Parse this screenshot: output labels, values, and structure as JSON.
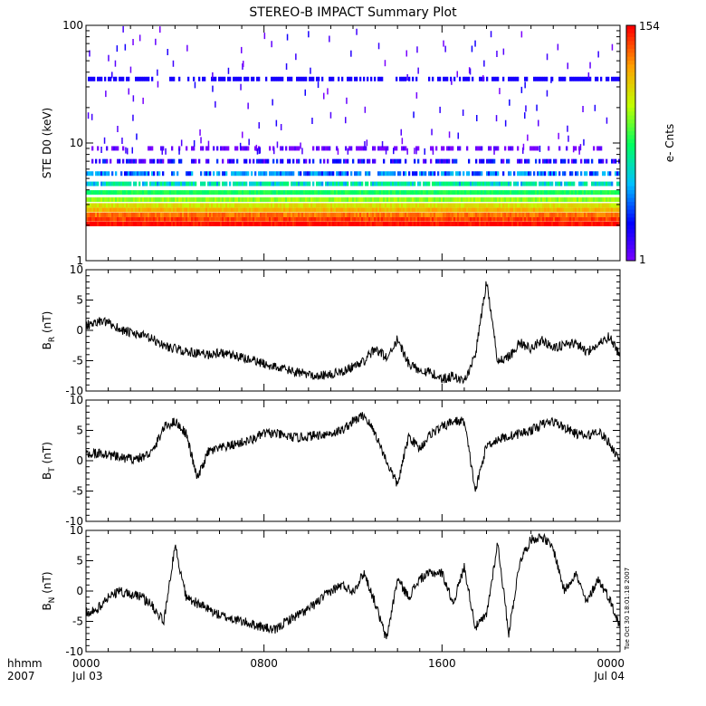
{
  "chart_data": [
    {
      "type": "heatmap",
      "title": "STEREO-B IMPACT Summary Plot",
      "ylabel": "STE D0 (keV)",
      "yscale": "log",
      "ylim": [
        1,
        100
      ],
      "yticks": [
        "1",
        "10",
        "100"
      ],
      "xlim": [
        0,
        1440
      ],
      "colorbar": {
        "label": "e- Cnts",
        "min": "1",
        "max": "154",
        "colors": [
          "#7f00ff",
          "#0000ff",
          "#00c0ff",
          "#00ff60",
          "#c0ff00",
          "#ffa000",
          "#ff0000"
        ]
      },
      "data": [
        {
          "energy_keV": 2.05,
          "counts": 154
        },
        {
          "energy_keV": 2.25,
          "counts": 120
        },
        {
          "energy_keV": 2.45,
          "counts": 90
        },
        {
          "energy_keV": 2.7,
          "counts": 60
        },
        {
          "energy_keV": 2.95,
          "counts": 40
        },
        {
          "energy_keV": 3.3,
          "counts": 25
        },
        {
          "energy_keV": 3.8,
          "counts": 14
        },
        {
          "energy_keV": 4.5,
          "counts": 8
        },
        {
          "energy_keV": 5.5,
          "counts": 4
        },
        {
          "energy_keV": 7.0,
          "counts": 2
        },
        {
          "energy_keV": 9.0,
          "counts": 1
        },
        {
          "energy_keV": 35,
          "counts": 2
        }
      ]
    },
    {
      "type": "line",
      "ylabel": "B",
      "ylabel_sub": "R",
      "ylabel_unit": "(nT)",
      "ylim": [
        -10,
        10
      ],
      "yticks": [
        "-10",
        "-5",
        "0",
        "5",
        "10"
      ],
      "xlim": [
        0,
        1440
      ],
      "series": [
        {
          "x": [
            0,
            30,
            60,
            90,
            120,
            150,
            180,
            210,
            240,
            270,
            300,
            330,
            360,
            390,
            420,
            450,
            480,
            510,
            540,
            570,
            600,
            630,
            660,
            690,
            720,
            750,
            780,
            810,
            840,
            870,
            900,
            930,
            960,
            990,
            1020,
            1050,
            1080,
            1110,
            1140,
            1170,
            1200,
            1230,
            1260,
            1290,
            1320,
            1350,
            1380,
            1410,
            1440
          ],
          "y": [
            0.8,
            1.5,
            1.2,
            0.3,
            -0.5,
            -0.8,
            -1.5,
            -2.5,
            -3,
            -3.5,
            -3.8,
            -4,
            -3.7,
            -4.2,
            -4.5,
            -5,
            -5.5,
            -6,
            -6.5,
            -7,
            -7.2,
            -7.5,
            -7.3,
            -6.8,
            -6,
            -5,
            -3,
            -4.5,
            -1.5,
            -5.5,
            -6.5,
            -7,
            -8,
            -7.5,
            -8.5,
            -4,
            8,
            -5,
            -4.5,
            -2,
            -3,
            -1.5,
            -3,
            -2.5,
            -2,
            -3.5,
            -2.5,
            -1,
            -4
          ]
        }
      ]
    },
    {
      "type": "line",
      "ylabel": "B",
      "ylabel_sub": "T",
      "ylabel_unit": "(nT)",
      "ylim": [
        -10,
        10
      ],
      "yticks": [
        "-10",
        "-5",
        "0",
        "5",
        "10"
      ],
      "xlim": [
        0,
        1440
      ],
      "series": [
        {
          "x": [
            0,
            30,
            60,
            90,
            120,
            150,
            180,
            210,
            240,
            270,
            300,
            330,
            360,
            390,
            420,
            450,
            480,
            510,
            540,
            570,
            600,
            630,
            660,
            690,
            720,
            750,
            780,
            810,
            840,
            870,
            900,
            930,
            960,
            990,
            1020,
            1050,
            1080,
            1110,
            1140,
            1170,
            1200,
            1230,
            1260,
            1290,
            1320,
            1350,
            1380,
            1410,
            1440
          ],
          "y": [
            1,
            1.2,
            1,
            0.5,
            0.3,
            0.5,
            1.5,
            5.5,
            6.5,
            4.5,
            -3,
            1.5,
            2,
            2.5,
            3,
            3.5,
            4.5,
            4.5,
            4,
            3.8,
            4,
            4.3,
            4.5,
            5,
            6.5,
            7.5,
            4.5,
            0,
            -4,
            4,
            2,
            4.5,
            5.5,
            6.5,
            6.5,
            -5,
            2.5,
            3.5,
            4,
            4.5,
            5,
            6,
            6.5,
            5.5,
            4.5,
            4,
            5,
            3,
            0
          ]
        }
      ]
    },
    {
      "type": "line",
      "ylabel": "B",
      "ylabel_sub": "N",
      "ylabel_unit": "(nT)",
      "ylim": [
        -10,
        10
      ],
      "yticks": [
        "-10",
        "-5",
        "0",
        "5",
        "10"
      ],
      "xlim": [
        0,
        1440
      ],
      "xticks": [
        {
          "x": 0,
          "top": "0000",
          "bottom": "Jul 03"
        },
        {
          "x": 480,
          "top": "0800",
          "bottom": ""
        },
        {
          "x": 960,
          "top": "1600",
          "bottom": ""
        },
        {
          "x": 1440,
          "top": "0000",
          "bottom": "Jul 04"
        }
      ],
      "series": [
        {
          "x": [
            0,
            30,
            60,
            90,
            120,
            150,
            180,
            210,
            240,
            270,
            300,
            330,
            360,
            390,
            420,
            450,
            480,
            510,
            540,
            570,
            600,
            630,
            660,
            690,
            720,
            750,
            780,
            810,
            840,
            870,
            900,
            930,
            960,
            990,
            1020,
            1050,
            1080,
            1110,
            1140,
            1170,
            1200,
            1230,
            1260,
            1290,
            1320,
            1350,
            1380,
            1410,
            1440
          ],
          "y": [
            -3.5,
            -3,
            -1,
            0,
            -0.5,
            -1,
            -2.5,
            -5,
            7.5,
            -1,
            -2,
            -3,
            -4,
            -4.5,
            -5,
            -5.5,
            -6,
            -6.5,
            -5,
            -4,
            -3,
            -1.5,
            0,
            1,
            0,
            3,
            -2,
            -8,
            2,
            -1,
            2,
            3,
            3,
            -2,
            4,
            -6,
            -4,
            8,
            -7,
            5,
            8.5,
            9,
            7,
            0,
            3,
            -2,
            2,
            -1,
            -6
          ]
        }
      ]
    }
  ],
  "axis_corner": {
    "line1": "hhmm",
    "line2": "2007"
  },
  "timestamp": "Tue Oct 30 18:01:18 2007"
}
